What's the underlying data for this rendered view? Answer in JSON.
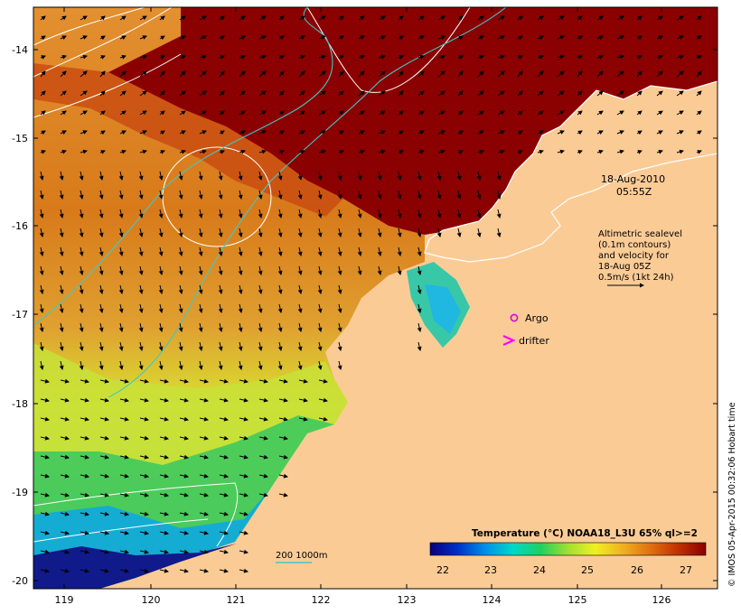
{
  "timestamp": {
    "date": "18-Aug-2010",
    "time": "05:55Z"
  },
  "velocity_legend": {
    "lines": [
      "Altimetric sealevel",
      "(0.1m contours)",
      "and velocity for",
      "18-Aug 05Z",
      "0.5m/s (1kt 24h)"
    ]
  },
  "markers": {
    "argo_label": "Argo",
    "drifter_label": "drifter",
    "argo_color": "#e000e0",
    "drifter_color": "#ff00ff"
  },
  "isobath_legend": {
    "label": "200  1000m",
    "color": "#40c8c8"
  },
  "colorbar": {
    "title": "Temperature (°C) NOAA18_L3U 65% ql>=2",
    "ticks": [
      "22",
      "23",
      "24",
      "25",
      "26",
      "27"
    ],
    "stops": [
      "#08007a",
      "#0030c8",
      "#0090e8",
      "#00d8c8",
      "#20d060",
      "#a0e030",
      "#f0f020",
      "#f0b020",
      "#e07010",
      "#c03000",
      "#8a0000"
    ]
  },
  "axes": {
    "x_ticks": [
      "119",
      "120",
      "121",
      "122",
      "123",
      "124",
      "125",
      "126"
    ],
    "y_ticks": [
      "-14",
      "-15",
      "-16",
      "-17",
      "-18",
      "-19",
      "-20"
    ]
  },
  "credit": "© IMOS 05-Apr-2015 00:32:06 Hobart time",
  "colors": {
    "land": "#fbcb96",
    "warm": "#8b0000",
    "frame": "#000000",
    "sealevel_contour": "#ffffff"
  }
}
